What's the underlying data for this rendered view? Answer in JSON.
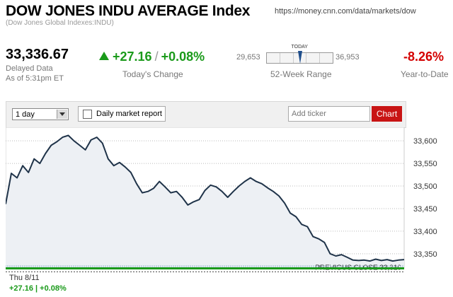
{
  "header": {
    "title": "DOW JONES INDU AVERAGE Index",
    "url": "https://money.cnn.com/data/markets/dow",
    "subtitle": "(Dow Jones Global Indexes:INDU)"
  },
  "quote": {
    "price": "33,336.67",
    "delayed": "Delayed Data",
    "as_of": "As of 5:31pm ET",
    "change": "+27.16",
    "change_pct": "+0.08%",
    "change_separator": "/",
    "change_label": "Today's Change",
    "change_color": "#1a9a1a",
    "range_low": "29,653",
    "range_high": "36,953",
    "range_today_label": "TODAY",
    "range_label": "52-Week Range",
    "range_position": 0.5,
    "ytd": "-8.26%",
    "ytd_label": "Year-to-Date",
    "ytd_color": "#d40000"
  },
  "toolbar": {
    "period_value": "1 day",
    "report_label": "Daily market report",
    "ticker_placeholder": "Add ticker",
    "chart_button": "Chart"
  },
  "chart_data": {
    "type": "area",
    "title": "",
    "xlabel": "",
    "ylabel": "",
    "ylim": [
      33320,
      33630
    ],
    "yticks": [
      33350,
      33400,
      33450,
      33500,
      33550,
      33600
    ],
    "ytick_labels": [
      "33,350",
      "33,400",
      "33,450",
      "33,500",
      "33,550",
      "33,600"
    ],
    "grid": true,
    "legend": "none",
    "line_color": "#1f3349",
    "fill_color": "#edf0f4",
    "series": [
      {
        "values": [
          33460,
          33528,
          33518,
          33545,
          33530,
          33560,
          33550,
          33572,
          33590,
          33598,
          33608,
          33612,
          33600,
          33590,
          33580,
          33602,
          33608,
          33595,
          33560,
          33545,
          33552,
          33542,
          33530,
          33505,
          33485,
          33488,
          33495,
          33510,
          33498,
          33485,
          33488,
          33475,
          33458,
          33465,
          33470,
          33490,
          33502,
          33498,
          33488,
          33475,
          33488,
          33500,
          33510,
          33518,
          33510,
          33505,
          33496,
          33488,
          33478,
          33462,
          33440,
          33432,
          33415,
          33410,
          33388,
          33383,
          33375,
          33350,
          33345,
          33348,
          33342,
          33336,
          33335,
          33336,
          33334,
          33338,
          33335,
          33337,
          33334,
          33336,
          33337
        ]
      }
    ],
    "previous_close": 33310,
    "previous_close_label": "PREVIOUS CLOSE 33,310",
    "previous_close_color": "#444444",
    "date_label": "Thu 8/11",
    "summary_change": "+27.16 | +0.08%",
    "summary_color": "#1a9a1a"
  }
}
